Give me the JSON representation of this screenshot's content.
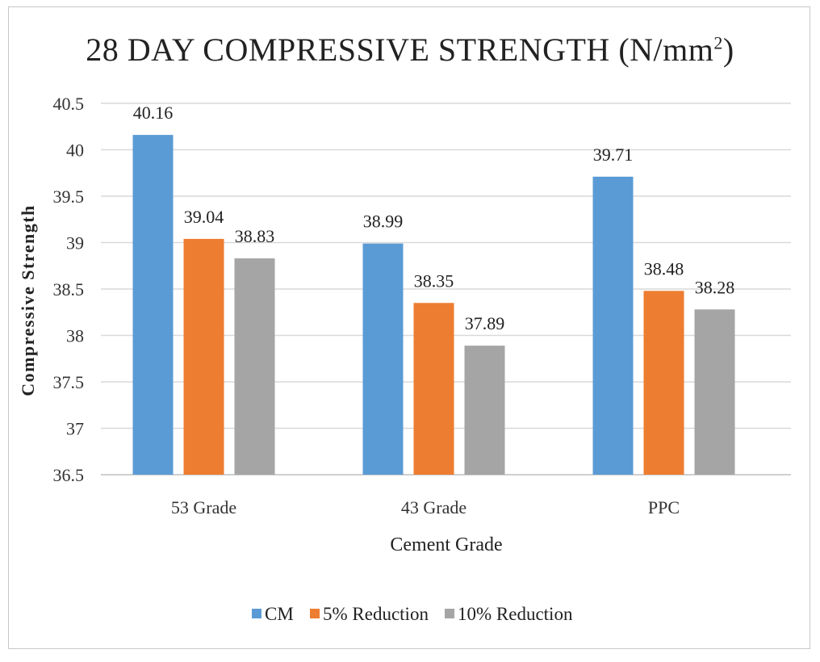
{
  "chart_data": {
    "type": "bar",
    "title_text": "28 DAY COMPRESSIVE STRENGTH (N/mm",
    "title_sup": "2",
    "title_close": ")",
    "xlabel": "Cement Grade",
    "ylabel": "Compressive Strength",
    "categories": [
      "53 Grade",
      "43 Grade",
      "PPC"
    ],
    "series": [
      {
        "name": "CM",
        "color": "#5b9bd5",
        "values": [
          40.16,
          38.99,
          39.71
        ]
      },
      {
        "name": "5% Reduction",
        "color": "#ed7d31",
        "values": [
          39.04,
          38.35,
          38.48
        ]
      },
      {
        "name": "10% Reduction",
        "color": "#a5a5a5",
        "values": [
          38.83,
          37.89,
          38.28
        ]
      }
    ],
    "ylim": [
      36.5,
      40.5
    ],
    "yticks": [
      "36.5",
      "37",
      "37.5",
      "38",
      "38.5",
      "39",
      "39.5",
      "40",
      "40.5"
    ],
    "grid": true,
    "legend_position": "bottom"
  }
}
